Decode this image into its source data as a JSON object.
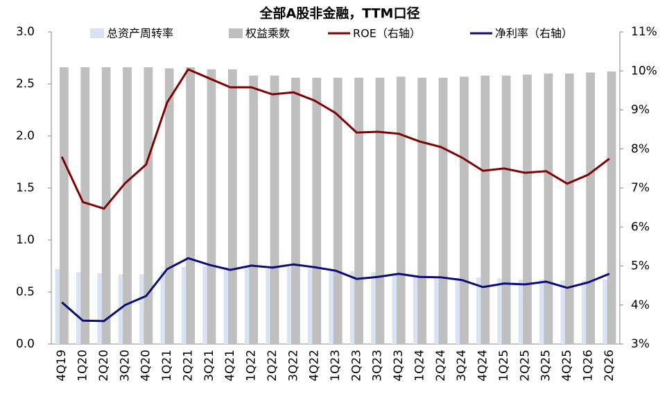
{
  "chart_data": {
    "type": "bar-line",
    "title": "全部A股非金融，TTM口径",
    "categories": [
      "4Q19",
      "1Q20",
      "2Q20",
      "3Q20",
      "4Q20",
      "1Q21",
      "2Q21",
      "3Q21",
      "4Q21",
      "1Q22",
      "2Q22",
      "3Q22",
      "4Q22",
      "1Q23",
      "2Q23",
      "3Q23",
      "4Q23",
      "1Q24",
      "2Q24",
      "3Q24",
      "4Q24",
      "1Q25",
      "2Q25",
      "3Q25",
      "4Q25",
      "1Q26",
      "2Q26"
    ],
    "series": [
      {
        "name": "总资产周转率",
        "kind": "bar",
        "color": "#dae3f3",
        "values": [
          0.72,
          0.69,
          0.68,
          0.67,
          0.67,
          0.7,
          0.74,
          0.75,
          0.74,
          0.74,
          0.72,
          0.74,
          0.73,
          0.71,
          0.7,
          0.69,
          0.68,
          0.66,
          0.65,
          0.64,
          0.64,
          0.63,
          0.62,
          0.62,
          0.61,
          0.61,
          0.62
        ]
      },
      {
        "name": "权益乘数",
        "kind": "bar",
        "color": "#bfbfbf",
        "values": [
          2.66,
          2.66,
          2.66,
          2.66,
          2.66,
          2.65,
          2.66,
          2.64,
          2.64,
          2.58,
          2.58,
          2.56,
          2.56,
          2.56,
          2.56,
          2.56,
          2.57,
          2.56,
          2.56,
          2.57,
          2.58,
          2.58,
          2.59,
          2.6,
          2.6,
          2.61,
          2.62
        ]
      },
      {
        "name": "ROE（右轴）",
        "kind": "line",
        "axis": "y2",
        "color": "#7f0000",
        "values": [
          7.8,
          6.64,
          6.47,
          7.12,
          7.6,
          9.19,
          10.04,
          9.81,
          9.58,
          9.58,
          9.4,
          9.45,
          9.24,
          8.92,
          8.42,
          8.44,
          8.39,
          8.19,
          8.05,
          7.78,
          7.44,
          7.5,
          7.39,
          7.43,
          7.11,
          7.34,
          7.75
        ]
      },
      {
        "name": "净利率（右轴）",
        "kind": "line",
        "axis": "y2",
        "color": "#0a0a78",
        "values": [
          4.07,
          3.6,
          3.59,
          4.0,
          4.23,
          4.92,
          5.2,
          5.03,
          4.9,
          5.01,
          4.96,
          5.04,
          4.97,
          4.88,
          4.67,
          4.72,
          4.8,
          4.72,
          4.71,
          4.64,
          4.46,
          4.55,
          4.53,
          4.6,
          4.44,
          4.58,
          4.8
        ]
      }
    ],
    "ylim": [
      0,
      3.0
    ],
    "yticks": [
      {
        "value": 0,
        "label": "0.0"
      },
      0.5,
      {
        "value": 1,
        "label": "1.0"
      },
      1.5,
      {
        "value": 2,
        "label": "2.0"
      },
      2.5,
      {
        "value": 3,
        "label": "3.0"
      }
    ],
    "y2lim": [
      3,
      11
    ],
    "y2ticks": [
      {
        "value": 3,
        "label": "3%"
      },
      {
        "value": 4,
        "label": "4%"
      },
      {
        "value": 5,
        "label": "5%"
      },
      {
        "value": 6,
        "label": "6%"
      },
      {
        "value": 7,
        "label": "7%"
      },
      {
        "value": 8,
        "label": "8%"
      },
      {
        "value": 9,
        "label": "9%"
      },
      {
        "value": 10,
        "label": "10%"
      },
      {
        "value": 11,
        "label": "11%"
      }
    ]
  }
}
